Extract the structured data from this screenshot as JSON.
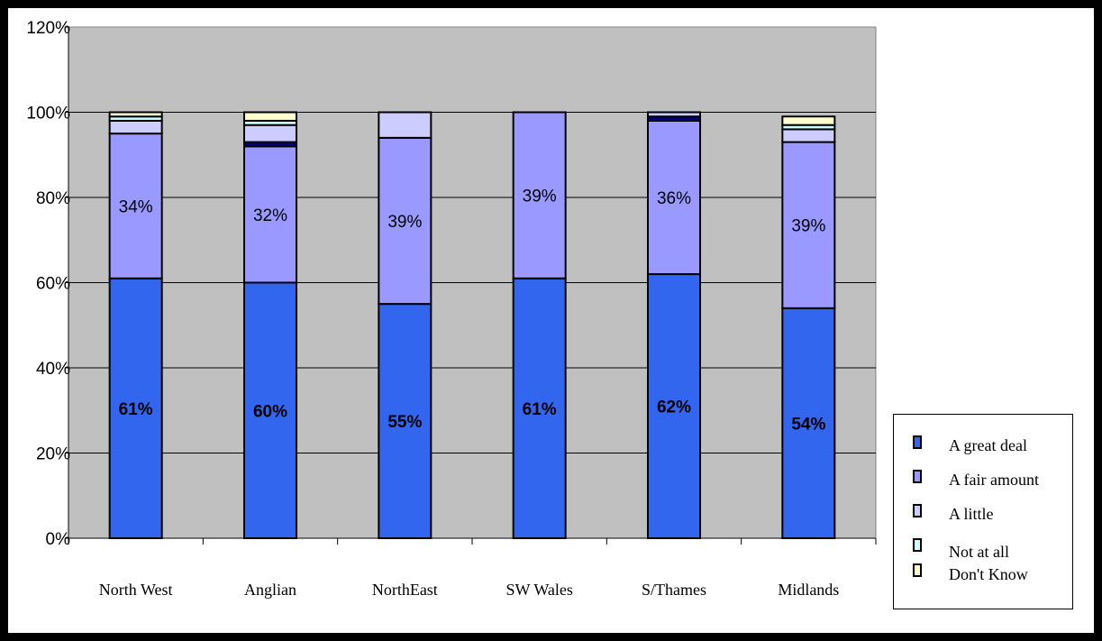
{
  "chart_data": {
    "type": "bar",
    "stacked": true,
    "categories": [
      "North West",
      "Anglian",
      "NorthEast",
      "SW Wales",
      "S/Thames",
      "Midlands"
    ],
    "series": [
      {
        "name": "A great deal",
        "color": "#3366ee",
        "values": [
          61,
          60,
          55,
          61,
          62,
          54
        ],
        "labels": [
          "61%",
          "60%",
          "55%",
          "61%",
          "62%",
          "54%"
        ]
      },
      {
        "name": "A fair amount",
        "color": "#9999ff",
        "values": [
          34,
          32,
          39,
          39,
          36,
          39
        ],
        "labels": [
          "34%",
          "32%",
          "39%",
          "39%",
          "36%",
          "39%"
        ]
      },
      {
        "name": "Navy segment",
        "color": "#000080",
        "values": [
          0,
          1,
          0,
          0,
          1,
          0
        ]
      },
      {
        "name": "A little",
        "color": "#ccccff",
        "values": [
          3,
          4,
          6,
          0,
          1,
          3
        ]
      },
      {
        "name": "Not at all",
        "color": "#ccffff",
        "values": [
          1,
          1,
          0,
          0,
          0,
          1
        ]
      },
      {
        "name": "Don't Know",
        "color": "#ffffcc",
        "values": [
          1,
          2,
          0,
          0,
          0,
          2
        ]
      }
    ],
    "ylim": [
      0,
      120
    ],
    "yticks": [
      "0%",
      "20%",
      "40%",
      "60%",
      "80%",
      "100%",
      "120%"
    ],
    "grid": true,
    "plot_background": "#c0c0c0",
    "legend_position": "right-bottom",
    "legend": [
      {
        "label": "A great deal",
        "color": "#3366ee"
      },
      {
        "label": "A fair amount",
        "color": "#9999ff"
      },
      {
        "label": "A little",
        "color": "#ccccff"
      },
      {
        "label": "Not at all",
        "color": "#ccffff"
      },
      {
        "label": "Don't Know",
        "color": "#ffffcc"
      }
    ]
  }
}
